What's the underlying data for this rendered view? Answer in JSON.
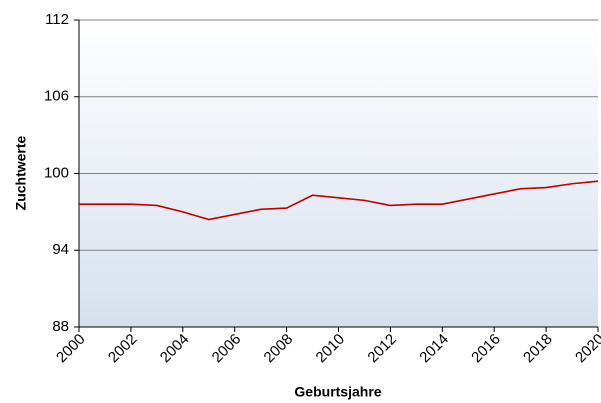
{
  "chart_data": {
    "type": "line",
    "x": [
      2000,
      2001,
      2002,
      2003,
      2004,
      2005,
      2006,
      2007,
      2008,
      2009,
      2010,
      2011,
      2012,
      2013,
      2014,
      2015,
      2016,
      2017,
      2018,
      2019,
      2020
    ],
    "series": [
      {
        "color": "#c00000",
        "values": [
          97.6,
          97.6,
          97.6,
          97.5,
          97.0,
          96.4,
          96.8,
          97.2,
          97.3,
          98.3,
          98.1,
          97.9,
          97.5,
          97.6,
          97.6,
          98.0,
          98.4,
          98.8,
          98.9,
          99.2,
          99.4
        ]
      }
    ],
    "xlim": [
      2000,
      2020
    ],
    "xticks": [
      2000,
      2002,
      2004,
      2006,
      2008,
      2010,
      2012,
      2014,
      2016,
      2018,
      2020
    ],
    "ylim": [
      88,
      112
    ],
    "yticks": [
      88,
      94,
      100,
      106,
      112
    ],
    "xlabel": "Geburtsjahre",
    "ylabel": "Zuchtwerte",
    "grid": true
  }
}
